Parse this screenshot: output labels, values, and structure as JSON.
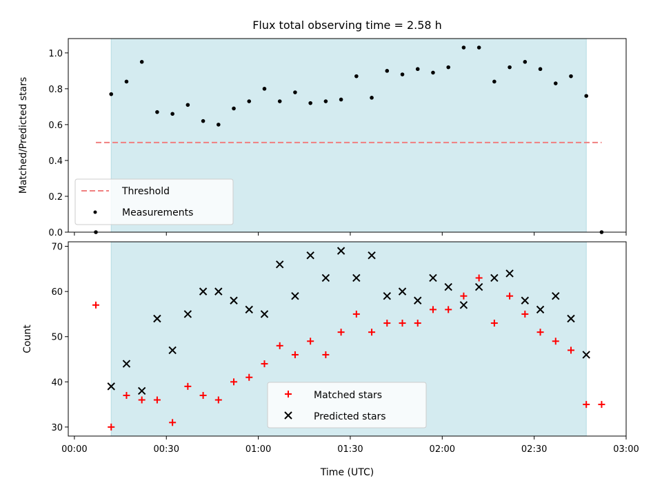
{
  "chart_data": [
    {
      "type": "scatter",
      "title": "Flux total observing time = 2.58 h",
      "xlabel": "",
      "ylabel": "Matched/Predicted stars",
      "xlim_minutes": [
        -2,
        180
      ],
      "ylim": [
        0,
        1.08
      ],
      "yticks": [
        0.0,
        0.2,
        0.4,
        0.6,
        0.8,
        1.0
      ],
      "ytick_labels": [
        "0.0",
        "0.2",
        "0.4",
        "0.6",
        "0.8",
        "1.0"
      ],
      "shaded_span_minutes": [
        12,
        167
      ],
      "shade_color": "#d4ebf0",
      "threshold": {
        "name": "Threshold",
        "value": 0.5,
        "x_range_minutes": [
          7,
          172
        ],
        "color": "#f07f7f"
      },
      "series": [
        {
          "name": "Measurements",
          "color": "#000000",
          "marker": "dot",
          "x_minutes": [
            7,
            12,
            17,
            22,
            27,
            32,
            37,
            42,
            47,
            52,
            57,
            62,
            67,
            72,
            77,
            82,
            87,
            92,
            97,
            102,
            107,
            112,
            117,
            122,
            127,
            132,
            137,
            142,
            147,
            152,
            157,
            162,
            167,
            172
          ],
          "y": [
            0.0,
            0.77,
            0.84,
            0.95,
            0.67,
            0.66,
            0.71,
            0.62,
            0.6,
            0.69,
            0.73,
            0.8,
            0.73,
            0.78,
            0.72,
            0.73,
            0.74,
            0.87,
            0.75,
            0.9,
            0.88,
            0.91,
            0.89,
            0.92,
            1.03,
            1.03,
            0.84,
            0.92,
            0.95,
            0.91,
            0.83,
            0.87,
            0.76,
            0.0
          ]
        }
      ],
      "legend": {
        "placement": "lower-left",
        "entries": [
          "Threshold",
          "Measurements"
        ]
      }
    },
    {
      "type": "scatter",
      "title": "",
      "xlabel": "Time (UTC)",
      "ylabel": "Count",
      "xlim_minutes": [
        -2,
        180
      ],
      "ylim": [
        28,
        71
      ],
      "yticks": [
        30,
        40,
        50,
        60,
        70
      ],
      "ytick_labels": [
        "30",
        "40",
        "50",
        "60",
        "70"
      ],
      "xticks_minutes": [
        0,
        30,
        60,
        90,
        120,
        150,
        180
      ],
      "xtick_labels": [
        "00:00",
        "00:30",
        "01:00",
        "01:30",
        "02:00",
        "02:30",
        "03:00"
      ],
      "shaded_span_minutes": [
        12,
        167
      ],
      "shade_color": "#d4ebf0",
      "series": [
        {
          "name": "Matched stars",
          "color": "#ff0000",
          "marker": "plus",
          "x_minutes": [
            7,
            12,
            17,
            22,
            27,
            32,
            37,
            42,
            47,
            52,
            57,
            62,
            67,
            72,
            77,
            82,
            87,
            92,
            97,
            102,
            107,
            112,
            117,
            122,
            127,
            132,
            137,
            142,
            147,
            152,
            157,
            162,
            167,
            172
          ],
          "y": [
            57,
            30,
            37,
            36,
            36,
            31,
            39,
            37,
            36,
            40,
            41,
            44,
            48,
            46,
            49,
            46,
            51,
            55,
            51,
            53,
            53,
            53,
            56,
            56,
            59,
            63,
            53,
            59,
            55,
            51,
            49,
            47,
            35,
            35
          ]
        },
        {
          "name": "Predicted stars",
          "color": "#000000",
          "marker": "x",
          "x_minutes": [
            12,
            17,
            22,
            27,
            32,
            37,
            42,
            47,
            52,
            57,
            62,
            67,
            72,
            77,
            82,
            87,
            92,
            97,
            102,
            107,
            112,
            117,
            122,
            127,
            132,
            137,
            142,
            147,
            152,
            157,
            162,
            167
          ],
          "y": [
            39,
            44,
            38,
            54,
            47,
            55,
            60,
            60,
            58,
            56,
            55,
            66,
            59,
            68,
            63,
            69,
            63,
            68,
            59,
            60,
            58,
            63,
            61,
            57,
            61,
            63,
            64,
            58,
            56,
            59,
            54,
            46
          ]
        }
      ],
      "legend": {
        "placement": "lower-center",
        "entries": [
          "Matched stars",
          "Predicted stars"
        ]
      }
    }
  ]
}
